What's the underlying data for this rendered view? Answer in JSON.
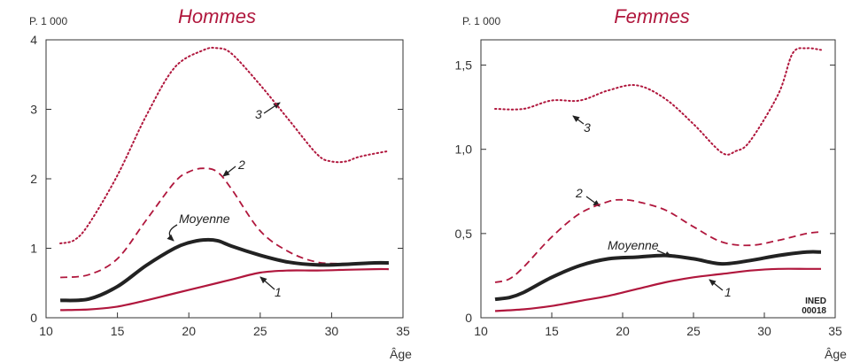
{
  "colors": {
    "main": "#b0173d",
    "average": "#222222"
  },
  "chart_data": [
    {
      "type": "line",
      "title": "Hommes",
      "ylabel": "P. 1 000",
      "xlabel": "Âge",
      "xlim": [
        10,
        35
      ],
      "ylim": [
        0,
        4
      ],
      "xticks": [
        10,
        15,
        20,
        25,
        30,
        35
      ],
      "yticks": [
        0,
        1,
        2,
        3,
        4
      ],
      "ytick_labels": [
        "0",
        "1",
        "2",
        "3",
        "4"
      ],
      "series": [
        {
          "name": "1",
          "style": "solid",
          "x": [
            11,
            13,
            15,
            17,
            19,
            21,
            23,
            25,
            27,
            29,
            31,
            33,
            34
          ],
          "y": [
            0.11,
            0.12,
            0.16,
            0.25,
            0.35,
            0.45,
            0.55,
            0.65,
            0.68,
            0.68,
            0.69,
            0.7,
            0.7
          ]
        },
        {
          "name": "2",
          "style": "dashed",
          "x": [
            11,
            13,
            15,
            17,
            19,
            20,
            21,
            22,
            23,
            25,
            27,
            29,
            31,
            33,
            34
          ],
          "y": [
            0.58,
            0.62,
            0.85,
            1.4,
            1.95,
            2.1,
            2.15,
            2.1,
            1.85,
            1.25,
            0.95,
            0.8,
            0.78,
            0.78,
            0.78
          ]
        },
        {
          "name": "3",
          "style": "dotted",
          "x": [
            11,
            12,
            13,
            15,
            17,
            19,
            21,
            22,
            23,
            25,
            27,
            29,
            30,
            31,
            32,
            34
          ],
          "y": [
            1.07,
            1.12,
            1.35,
            2.05,
            2.9,
            3.6,
            3.85,
            3.88,
            3.8,
            3.35,
            2.85,
            2.35,
            2.25,
            2.25,
            2.32,
            2.4
          ]
        },
        {
          "name": "Moyenne",
          "style": "bold",
          "x": [
            11,
            13,
            15,
            17,
            19,
            20,
            21,
            22,
            23,
            25,
            27,
            29,
            31,
            33,
            34
          ],
          "y": [
            0.25,
            0.27,
            0.45,
            0.75,
            1.0,
            1.08,
            1.12,
            1.11,
            1.03,
            0.9,
            0.8,
            0.76,
            0.77,
            0.79,
            0.79
          ]
        }
      ],
      "annotations": [
        "3",
        "2",
        "Moyenne",
        "1"
      ]
    },
    {
      "type": "line",
      "title": "Femmes",
      "ylabel": "P. 1 000",
      "xlabel": "Âge",
      "xlim": [
        10,
        35
      ],
      "ylim": [
        0,
        1.65
      ],
      "xticks": [
        10,
        15,
        20,
        25,
        30,
        35
      ],
      "yticks": [
        0,
        0.5,
        1.0,
        1.5
      ],
      "ytick_labels": [
        "0",
        "0,5",
        "1,0",
        "1,5"
      ],
      "series": [
        {
          "name": "1",
          "style": "solid",
          "x": [
            11,
            13,
            15,
            17,
            19,
            21,
            23,
            25,
            27,
            29,
            31,
            33,
            34
          ],
          "y": [
            0.04,
            0.05,
            0.07,
            0.1,
            0.13,
            0.17,
            0.21,
            0.24,
            0.26,
            0.28,
            0.29,
            0.29,
            0.29
          ]
        },
        {
          "name": "2",
          "style": "dashed",
          "x": [
            11,
            12,
            13,
            15,
            17,
            19,
            20,
            21,
            23,
            25,
            27,
            29,
            31,
            33,
            34
          ],
          "y": [
            0.21,
            0.23,
            0.3,
            0.48,
            0.62,
            0.69,
            0.7,
            0.69,
            0.64,
            0.54,
            0.45,
            0.43,
            0.46,
            0.5,
            0.51
          ]
        },
        {
          "name": "3",
          "style": "dotted",
          "x": [
            11,
            13,
            15,
            17,
            19,
            21,
            23,
            25,
            27,
            28,
            29,
            31,
            32,
            33,
            34
          ],
          "y": [
            1.24,
            1.24,
            1.29,
            1.29,
            1.35,
            1.38,
            1.3,
            1.15,
            0.98,
            0.99,
            1.05,
            1.33,
            1.57,
            1.6,
            1.59
          ]
        },
        {
          "name": "Moyenne",
          "style": "bold",
          "x": [
            11,
            12,
            13,
            15,
            17,
            19,
            21,
            23,
            25,
            27,
            29,
            31,
            33,
            34
          ],
          "y": [
            0.11,
            0.12,
            0.15,
            0.24,
            0.31,
            0.35,
            0.36,
            0.37,
            0.35,
            0.32,
            0.34,
            0.37,
            0.39,
            0.39
          ]
        }
      ],
      "annotations": [
        "2",
        "3",
        "Moyenne",
        "1"
      ],
      "source": [
        "INED",
        "00018"
      ]
    }
  ]
}
